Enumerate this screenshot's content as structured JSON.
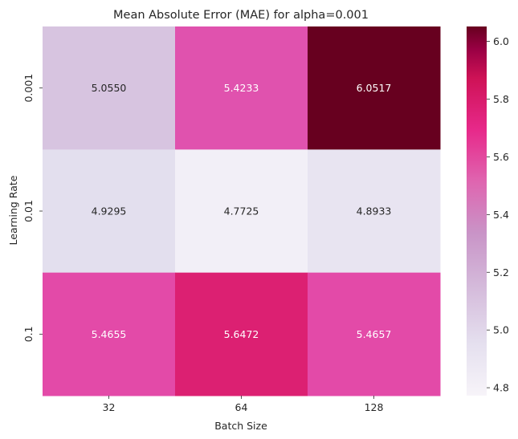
{
  "chart_data": {
    "type": "heatmap",
    "title": "Mean Absolute Error (MAE) for alpha=0.001",
    "xlabel": "Batch Size",
    "ylabel": "Learning Rate",
    "x_categories": [
      "32",
      "64",
      "128"
    ],
    "y_categories": [
      "0.001",
      "0.01",
      "0.1"
    ],
    "values": [
      [
        5.055,
        5.4233,
        6.0517
      ],
      [
        4.9295,
        4.7725,
        4.8933
      ],
      [
        5.4655,
        5.6472,
        5.4657
      ]
    ],
    "annotations": [
      [
        "5.0550",
        "5.4233",
        "6.0517"
      ],
      [
        "4.9295",
        "4.7725",
        "4.8933"
      ],
      [
        "5.4655",
        "5.6472",
        "5.4657"
      ]
    ],
    "colormap": "PuRd",
    "vmin": 4.7725,
    "vmax": 6.0517,
    "colorbar_ticks": [
      4.8,
      5.0,
      5.2,
      5.4,
      5.6,
      5.8,
      6.0
    ],
    "colorbar_tick_labels": [
      "4.8",
      "5.0",
      "5.2",
      "5.4",
      "5.6",
      "5.8",
      "6.0"
    ],
    "cell_colors": [
      [
        "#d7c4e0",
        "#e052ae",
        "#67001f"
      ],
      [
        "#e3dfee",
        "#f2eff7",
        "#e8e4f1"
      ],
      [
        "#e34aa8",
        "#dc2072",
        "#e34aa8"
      ]
    ],
    "annotation_colors": [
      [
        "#262626",
        "#ffffff",
        "#ffffff"
      ],
      [
        "#262626",
        "#262626",
        "#262626"
      ],
      [
        "#ffffff",
        "#ffffff",
        "#ffffff"
      ]
    ]
  }
}
